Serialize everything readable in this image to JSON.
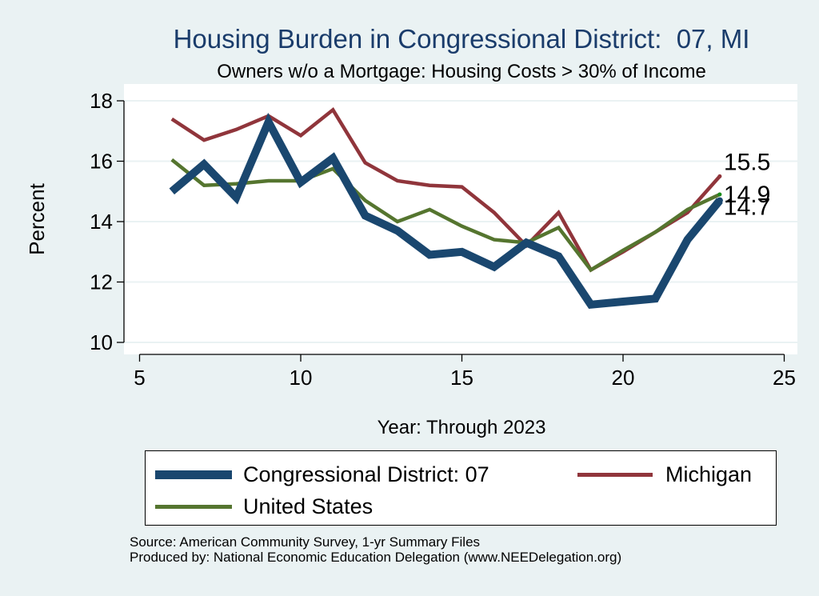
{
  "chart_data": {
    "type": "line",
    "title": "Housing Burden in Congressional District:  07, MI",
    "subtitle": "Owners w/o a Mortgage: Housing Costs > 30% of Income",
    "xlabel": "Year: Through 2023",
    "ylabel": "Percent",
    "xlim": [
      5,
      25
    ],
    "ylim": [
      10,
      18
    ],
    "xticks": [
      5,
      10,
      15,
      20,
      25
    ],
    "yticks": [
      10,
      12,
      14,
      16,
      18
    ],
    "grid": true,
    "legend_position": "bottom",
    "x": [
      6,
      7,
      8,
      9,
      10,
      11,
      12,
      13,
      14,
      15,
      16,
      17,
      18,
      19,
      20,
      21,
      22,
      23
    ],
    "series": [
      {
        "name": "Congressional District:  07",
        "color": "#1a476f",
        "values": [
          15.0,
          15.9,
          14.8,
          17.3,
          15.3,
          16.1,
          14.2,
          13.7,
          12.9,
          13.0,
          12.5,
          13.3,
          12.85,
          11.25,
          11.35,
          11.45,
          13.4,
          14.7
        ]
      },
      {
        "name": "Michigan",
        "color": "#90353b",
        "values": [
          17.4,
          16.7,
          17.05,
          17.5,
          16.85,
          17.7,
          15.95,
          15.35,
          15.2,
          15.15,
          14.3,
          13.2,
          14.3,
          12.4,
          13.0,
          13.65,
          14.3,
          15.5
        ]
      },
      {
        "name": "United States",
        "color": "#55752f",
        "values": [
          16.05,
          15.2,
          15.25,
          15.35,
          15.35,
          15.75,
          14.7,
          14.0,
          14.4,
          13.85,
          13.4,
          13.3,
          13.8,
          12.4,
          13.05,
          13.65,
          14.4,
          14.9
        ]
      }
    ],
    "end_labels": [
      {
        "series": "Michigan",
        "value": 15.5,
        "text": "15.5"
      },
      {
        "series": "United States",
        "value": 14.9,
        "text": "14.9"
      },
      {
        "series": "Congressional District:  07",
        "value": 14.7,
        "text": "14.7"
      }
    ]
  },
  "source_line": "Source: American Community Survey, 1-yr Summary Files",
  "produced_line": "Produced by: National Economic Education Delegation (www.NEEDelegation.org)"
}
